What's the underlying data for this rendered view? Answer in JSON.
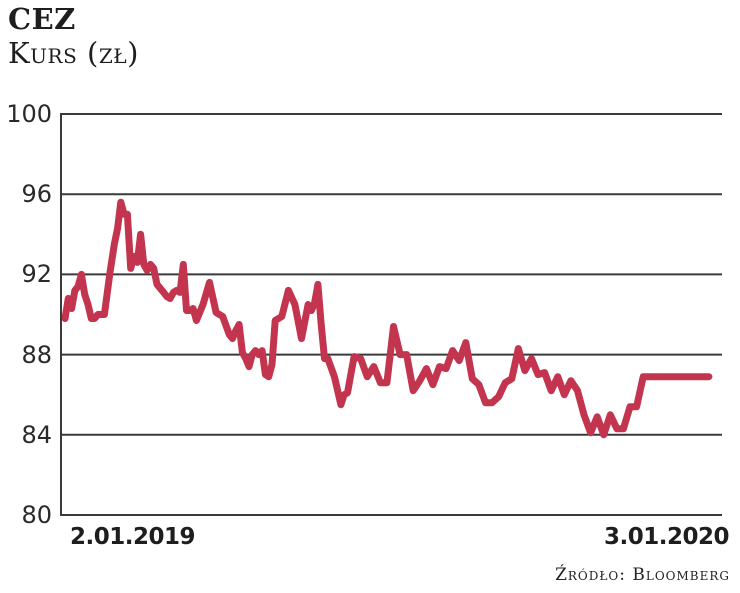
{
  "header": {
    "title": "CEZ",
    "subtitle": "Kurs (zł)"
  },
  "axes": {
    "y_ticks": [
      "100",
      "96",
      "92",
      "88",
      "84",
      "80"
    ],
    "x_start_label": "2.01.2019",
    "x_end_label": "3.01.2020"
  },
  "footer": {
    "source": "Źródło: Bloomberg"
  },
  "colors": {
    "line": "#c3354f",
    "grid": "#3a3a3a",
    "axis": "#3a3a3a"
  },
  "chart_data": {
    "type": "line",
    "title": "CEZ",
    "subtitle": "Kurs (zł)",
    "xlabel": "",
    "ylabel": "Kurs (zł)",
    "ylim": [
      80,
      100
    ],
    "y_ticks": [
      80,
      84,
      88,
      92,
      96,
      100
    ],
    "x_tick_labels": [
      "2.01.2019",
      "3.01.2020"
    ],
    "x_range": [
      "2019-01-02",
      "2020-01-03"
    ],
    "grid": "horizontal",
    "legend": "none",
    "source": "Źródło: Bloomberg",
    "series": [
      {
        "name": "CEZ",
        "x_frac": [
          0.0,
          0.005,
          0.01,
          0.015,
          0.02,
          0.025,
          0.03,
          0.035,
          0.04,
          0.045,
          0.05,
          0.055,
          0.06,
          0.068,
          0.075,
          0.08,
          0.085,
          0.09,
          0.095,
          0.1,
          0.105,
          0.11,
          0.115,
          0.12,
          0.125,
          0.13,
          0.135,
          0.14,
          0.145,
          0.15,
          0.155,
          0.16,
          0.165,
          0.17,
          0.175,
          0.18,
          0.185,
          0.19,
          0.195,
          0.2,
          0.21,
          0.22,
          0.23,
          0.24,
          0.25,
          0.255,
          0.26,
          0.265,
          0.27,
          0.275,
          0.28,
          0.285,
          0.29,
          0.295,
          0.3,
          0.305,
          0.31,
          0.315,
          0.32,
          0.33,
          0.34,
          0.35,
          0.36,
          0.37,
          0.375,
          0.38,
          0.385,
          0.39,
          0.395,
          0.4,
          0.41,
          0.42,
          0.425,
          0.43,
          0.44,
          0.45,
          0.46,
          0.47,
          0.48,
          0.49,
          0.5,
          0.51,
          0.52,
          0.53,
          0.54,
          0.55,
          0.56,
          0.57,
          0.58,
          0.59,
          0.6,
          0.61,
          0.62,
          0.63,
          0.64,
          0.65,
          0.66,
          0.67,
          0.68,
          0.69,
          0.7,
          0.71,
          0.72,
          0.73,
          0.74,
          0.75,
          0.76,
          0.77,
          0.78,
          0.79,
          0.8,
          0.81,
          0.82,
          0.83,
          0.84,
          0.85,
          0.86,
          0.87,
          0.88,
          0.89,
          0.9,
          0.91,
          0.92,
          0.93,
          0.94,
          0.95,
          0.96,
          0.97,
          0.98,
          0.99,
          1.0
        ],
        "values": [
          89.8,
          90.8,
          90.3,
          91.2,
          91.4,
          92.0,
          91.0,
          90.5,
          89.8,
          89.8,
          90.0,
          90.0,
          90.0,
          92.0,
          93.5,
          94.3,
          95.6,
          95.0,
          95.0,
          92.3,
          92.9,
          92.6,
          94.0,
          92.5,
          92.2,
          92.5,
          92.3,
          91.5,
          91.3,
          91.1,
          90.9,
          90.8,
          91.1,
          91.2,
          91.1,
          92.5,
          90.2,
          90.2,
          90.3,
          89.7,
          90.5,
          91.6,
          90.1,
          89.9,
          89.0,
          88.8,
          89.2,
          89.5,
          88.1,
          87.8,
          87.4,
          88.0,
          88.2,
          88.0,
          88.2,
          87.0,
          86.9,
          87.5,
          89.7,
          89.9,
          91.2,
          90.5,
          88.8,
          90.5,
          90.2,
          90.6,
          91.5,
          89.5,
          87.8,
          87.8,
          86.9,
          85.5,
          86.0,
          86.1,
          87.9,
          87.8,
          86.9,
          87.4,
          86.6,
          86.6,
          89.4,
          88.0,
          88.0,
          86.2,
          86.7,
          87.3,
          86.5,
          87.4,
          87.3,
          88.2,
          87.7,
          88.6,
          86.8,
          86.5,
          85.6,
          85.6,
          85.9,
          86.6,
          86.8,
          88.3,
          87.2,
          87.8,
          87.0,
          87.1,
          86.2,
          86.9,
          86.0,
          86.7,
          86.2,
          85.0,
          84.1,
          84.9,
          84.0,
          85.0,
          84.3,
          84.3,
          85.4,
          85.4,
          86.9,
          86.9,
          86.9,
          86.9,
          86.9,
          86.9,
          86.9,
          86.9,
          86.9,
          86.9,
          86.9
        ]
      }
    ]
  }
}
